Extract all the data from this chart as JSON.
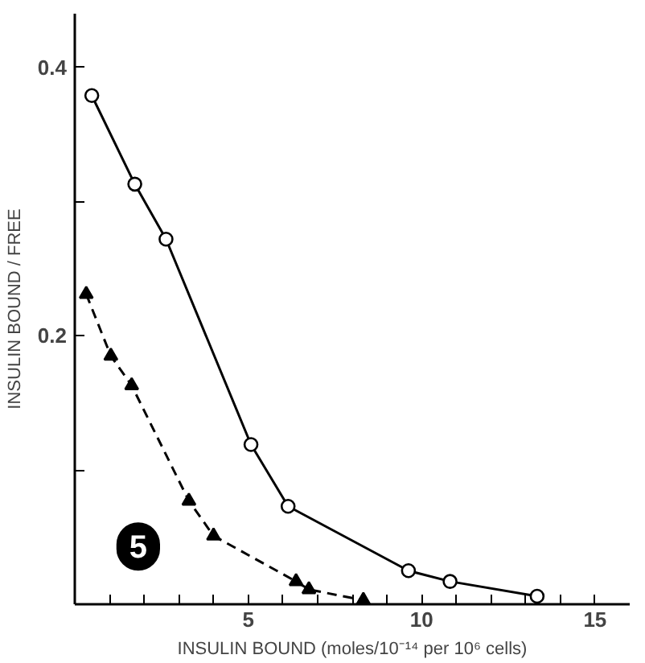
{
  "chart_data": {
    "type": "line",
    "xlabel": "INSULIN BOUND (moles/10⁻¹⁴ per 10⁶ cells)",
    "ylabel": "INSULIN BOUND / FREE",
    "xlim": [
      0,
      16
    ],
    "ylim": [
      0,
      0.44
    ],
    "xticks": [
      {
        "value": 1,
        "label": null
      },
      {
        "value": 2,
        "label": null
      },
      {
        "value": 3,
        "label": null
      },
      {
        "value": 4,
        "label": null
      },
      5,
      {
        "value": 6,
        "label": null
      },
      {
        "value": 7,
        "label": null
      },
      {
        "value": 8,
        "label": null
      },
      {
        "value": 9,
        "label": null
      },
      10,
      {
        "value": 11,
        "label": null
      },
      {
        "value": 12,
        "label": null
      },
      {
        "value": 13,
        "label": null
      },
      {
        "value": 14,
        "label": null
      },
      15
    ],
    "yticks": [
      {
        "value": 0.1,
        "label": null
      },
      {
        "value": 0.2,
        "label": "0.2"
      },
      {
        "value": 0.3,
        "label": null
      },
      {
        "value": 0.4,
        "label": "0.4"
      }
    ],
    "grid": false,
    "series": [
      {
        "color": "#000000",
        "marker": "circle",
        "line_style": "solid",
        "x": [
          0.49,
          1.73,
          2.63,
          5.08,
          6.15,
          9.62,
          10.82,
          13.33
        ],
        "values": [
          0.379,
          0.313,
          0.272,
          0.119,
          0.073,
          0.025,
          0.017,
          0.006
        ]
      },
      {
        "color": "#000000",
        "marker": "triangle",
        "line_style": "dashed",
        "x": [
          0.33,
          1.04,
          1.64,
          3.29,
          4.0,
          6.38,
          6.75,
          8.32
        ],
        "values": [
          0.231,
          0.185,
          0.163,
          0.077,
          0.051,
          0.017,
          0.011,
          0.003
        ]
      }
    ],
    "annotations": [
      "5"
    ]
  }
}
